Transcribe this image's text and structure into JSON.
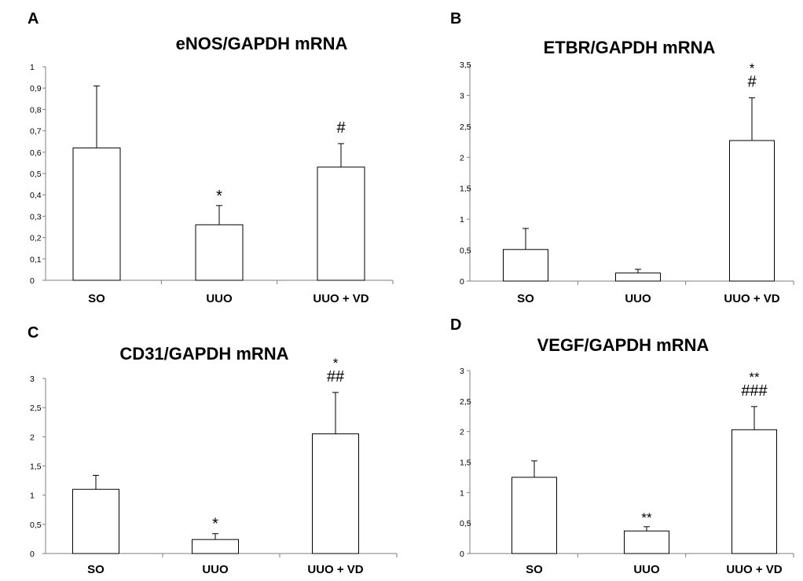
{
  "chart_data": [
    {
      "type": "bar",
      "panel": "A",
      "title": "eNOS/GAPDH mRNA",
      "categories": [
        "SO",
        "UUO",
        "UUO + VD"
      ],
      "values": [
        0.62,
        0.26,
        0.53
      ],
      "errors": [
        0.29,
        0.09,
        0.11
      ],
      "annotations": [
        [],
        [
          "*"
        ],
        [
          "#"
        ]
      ],
      "ylim": [
        0,
        1
      ],
      "yticks": [
        0,
        0.1,
        0.2,
        0.3,
        0.4,
        0.5,
        0.6,
        0.7,
        0.8,
        0.9,
        1
      ],
      "ytick_labels": [
        "0",
        "0,1",
        "0,2",
        "0,3",
        "0,4",
        "0,5",
        "0,6",
        "0,7",
        "0,8",
        "0,9",
        "1"
      ],
      "grid": false
    },
    {
      "type": "bar",
      "panel": "B",
      "title": "ETBR/GAPDH mRNA",
      "categories": [
        "SO",
        "UUO",
        "UUO + VD"
      ],
      "values": [
        0.51,
        0.13,
        2.27
      ],
      "errors": [
        0.34,
        0.06,
        0.69
      ],
      "annotations": [
        [],
        [],
        [
          "*",
          "#"
        ]
      ],
      "ylim": [
        0,
        3.5
      ],
      "yticks": [
        0,
        0.5,
        1,
        1.5,
        2,
        2.5,
        3,
        3.5
      ],
      "ytick_labels": [
        "0",
        "0,5",
        "1",
        "1,5",
        "2",
        "2,5",
        "3",
        "3,5"
      ],
      "grid": false
    },
    {
      "type": "bar",
      "panel": "C",
      "title": "CD31/GAPDH mRNA",
      "categories": [
        "SO",
        "UUO",
        "UUO + VD"
      ],
      "values": [
        1.1,
        0.24,
        2.05
      ],
      "errors": [
        0.24,
        0.1,
        0.71
      ],
      "annotations": [
        [],
        [
          "*"
        ],
        [
          "*",
          "##"
        ]
      ],
      "ylim": [
        0,
        3
      ],
      "yticks": [
        0,
        0.5,
        1,
        1.5,
        2,
        2.5,
        3
      ],
      "ytick_labels": [
        "0",
        "0,5",
        "1",
        "1,5",
        "2",
        "2,5",
        "3"
      ],
      "grid": false
    },
    {
      "type": "bar",
      "panel": "D",
      "title": "VEGF/GAPDH mRNA",
      "categories": [
        "SO",
        "UUO",
        "UUO + VD"
      ],
      "values": [
        1.25,
        0.37,
        2.03
      ],
      "errors": [
        0.27,
        0.07,
        0.38
      ],
      "annotations": [
        [],
        [
          "**"
        ],
        [
          "**",
          "###"
        ]
      ],
      "ylim": [
        0,
        3
      ],
      "yticks": [
        0,
        0.5,
        1,
        1.5,
        2,
        2.5,
        3
      ],
      "ytick_labels": [
        "0",
        "0,5",
        "1",
        "1,5",
        "2",
        "2,5",
        "3"
      ],
      "grid": false
    }
  ]
}
